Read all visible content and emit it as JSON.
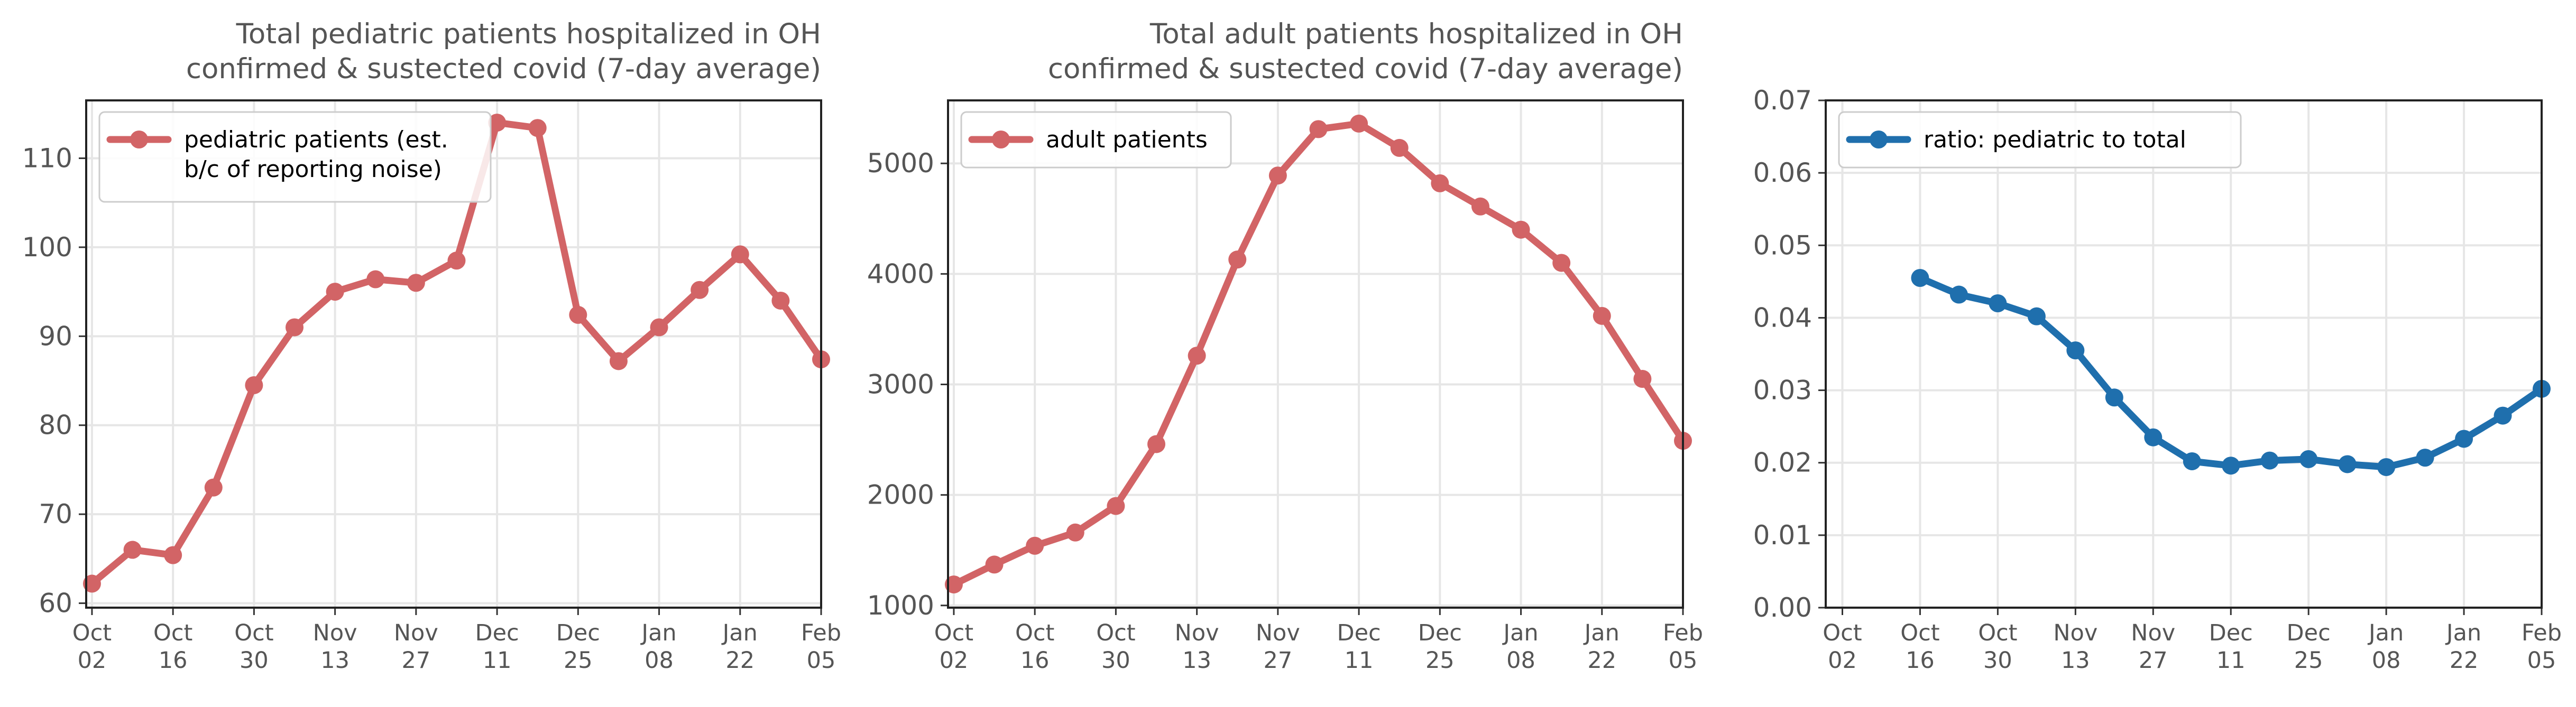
{
  "chart_data": [
    {
      "type": "line",
      "title": "Total pediatric patients hospitalized in OH",
      "subtitle": "confirmed & sustected covid (7-day average)",
      "x": [
        "2020-10-02",
        "2020-10-09",
        "2020-10-16",
        "2020-10-23",
        "2020-10-30",
        "2020-11-06",
        "2020-11-13",
        "2020-11-20",
        "2020-11-27",
        "2020-12-04",
        "2020-12-11",
        "2020-12-18",
        "2020-12-25",
        "2021-01-01",
        "2021-01-08",
        "2021-01-15",
        "2021-01-22",
        "2021-01-29",
        "2021-02-05"
      ],
      "series": [
        {
          "name": "pediatric patients (est.\nb/c of reporting noise)",
          "color": "#d26466",
          "values": [
            62.2,
            66.0,
            65.4,
            73.0,
            84.5,
            91.0,
            95.0,
            96.4,
            96.0,
            98.5,
            114.0,
            113.4,
            92.4,
            87.2,
            91.0,
            95.2,
            99.2,
            94.0,
            87.4
          ]
        }
      ],
      "legend_lines": [
        "pediatric patients (est.",
        "b/c of reporting noise)"
      ],
      "ylim": [
        59.5,
        116.5
      ],
      "yticks": [
        60,
        70,
        80,
        90,
        100,
        110
      ],
      "xticks": [
        {
          "date": "2020-10-02",
          "line1": "Oct",
          "line2": "02"
        },
        {
          "date": "2020-10-16",
          "line1": "Oct",
          "line2": "16"
        },
        {
          "date": "2020-10-30",
          "line1": "Oct",
          "line2": "30"
        },
        {
          "date": "2020-11-13",
          "line1": "Nov",
          "line2": "13"
        },
        {
          "date": "2020-11-27",
          "line1": "Nov",
          "line2": "27"
        },
        {
          "date": "2020-12-11",
          "line1": "Dec",
          "line2": "11"
        },
        {
          "date": "2020-12-25",
          "line1": "Dec",
          "line2": "25"
        },
        {
          "date": "2021-01-08",
          "line1": "Jan",
          "line2": "08"
        },
        {
          "date": "2021-01-22",
          "line1": "Jan",
          "line2": "22"
        },
        {
          "date": "2021-02-05",
          "line1": "Feb",
          "line2": "05"
        }
      ],
      "xlim": [
        "2020-10-01",
        "2021-02-05"
      ],
      "grid": true,
      "legend_position": "upper-left"
    },
    {
      "type": "line",
      "title": "Total adult patients hospitalized in OH",
      "subtitle": "confirmed & sustected covid (7-day average)",
      "x": [
        "2020-10-02",
        "2020-10-09",
        "2020-10-16",
        "2020-10-23",
        "2020-10-30",
        "2020-11-06",
        "2020-11-13",
        "2020-11-20",
        "2020-11-27",
        "2020-12-04",
        "2020-12-11",
        "2020-12-18",
        "2020-12-25",
        "2021-01-01",
        "2021-01-08",
        "2021-01-15",
        "2021-01-22",
        "2021-01-29",
        "2021-02-05"
      ],
      "series": [
        {
          "name": "adult patients",
          "color": "#d26466",
          "values": [
            1190,
            1370,
            1540,
            1660,
            1900,
            2460,
            3260,
            4130,
            4890,
            5310,
            5360,
            5140,
            4820,
            4610,
            4400,
            4100,
            3620,
            3050,
            2490
          ]
        }
      ],
      "legend_lines": [
        "adult patients"
      ],
      "ylim": [
        980,
        5570
      ],
      "yticks": [
        1000,
        2000,
        3000,
        4000,
        5000
      ],
      "xticks": [
        {
          "date": "2020-10-02",
          "line1": "Oct",
          "line2": "02"
        },
        {
          "date": "2020-10-16",
          "line1": "Oct",
          "line2": "16"
        },
        {
          "date": "2020-10-30",
          "line1": "Oct",
          "line2": "30"
        },
        {
          "date": "2020-11-13",
          "line1": "Nov",
          "line2": "13"
        },
        {
          "date": "2020-11-27",
          "line1": "Nov",
          "line2": "27"
        },
        {
          "date": "2020-12-11",
          "line1": "Dec",
          "line2": "11"
        },
        {
          "date": "2020-12-25",
          "line1": "Dec",
          "line2": "25"
        },
        {
          "date": "2021-01-08",
          "line1": "Jan",
          "line2": "08"
        },
        {
          "date": "2021-01-22",
          "line1": "Jan",
          "line2": "22"
        },
        {
          "date": "2021-02-05",
          "line1": "Feb",
          "line2": "05"
        }
      ],
      "xlim": [
        "2020-10-01",
        "2021-02-05"
      ],
      "grid": true,
      "legend_position": "upper-left"
    },
    {
      "type": "line",
      "title": "",
      "subtitle": "",
      "x": [
        "2020-10-16",
        "2020-10-23",
        "2020-10-30",
        "2020-11-06",
        "2020-11-13",
        "2020-11-20",
        "2020-11-27",
        "2020-12-04",
        "2020-12-11",
        "2020-12-18",
        "2020-12-25",
        "2021-01-01",
        "2021-01-08",
        "2021-01-15",
        "2021-01-22",
        "2021-01-29",
        "2021-02-05"
      ],
      "series": [
        {
          "name": "ratio: pediatric to total",
          "color": "#1f6fad",
          "values": [
            0.0455,
            0.0432,
            0.042,
            0.0402,
            0.0355,
            0.029,
            0.0235,
            0.0202,
            0.0196,
            0.0203,
            0.0205,
            0.0198,
            0.0194,
            0.0207,
            0.0233,
            0.0265,
            0.0302
          ]
        }
      ],
      "legend_lines": [
        "ratio: pediatric to total"
      ],
      "ylim": [
        0.0,
        0.07
      ],
      "yticks": [
        0.0,
        0.01,
        0.02,
        0.03,
        0.04,
        0.05,
        0.06,
        0.07
      ],
      "ytick_decimals": 2,
      "xticks": [
        {
          "date": "2020-10-02",
          "line1": "Oct",
          "line2": "02"
        },
        {
          "date": "2020-10-16",
          "line1": "Oct",
          "line2": "16"
        },
        {
          "date": "2020-10-30",
          "line1": "Oct",
          "line2": "30"
        },
        {
          "date": "2020-11-13",
          "line1": "Nov",
          "line2": "13"
        },
        {
          "date": "2020-11-27",
          "line1": "Nov",
          "line2": "27"
        },
        {
          "date": "2020-12-11",
          "line1": "Dec",
          "line2": "11"
        },
        {
          "date": "2020-12-25",
          "line1": "Dec",
          "line2": "25"
        },
        {
          "date": "2021-01-08",
          "line1": "Jan",
          "line2": "08"
        },
        {
          "date": "2021-01-22",
          "line1": "Jan",
          "line2": "22"
        },
        {
          "date": "2021-02-05",
          "line1": "Feb",
          "line2": "05"
        }
      ],
      "xlim": [
        "2020-09-29",
        "2021-02-05"
      ],
      "grid": true,
      "legend_position": "upper-left"
    }
  ]
}
